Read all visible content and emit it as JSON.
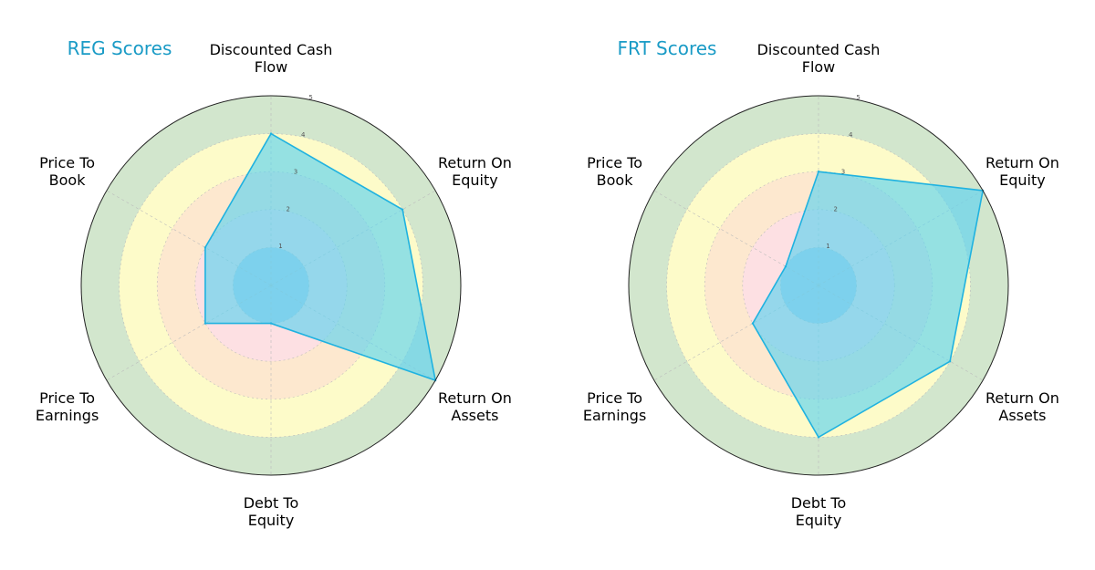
{
  "chart_data": [
    {
      "type": "radar",
      "title": "REG Scores",
      "axes": [
        "Discounted Cash Flow",
        "Return On Equity",
        "Return On Assets",
        "Debt To Equity",
        "Price To Earnings",
        "Price To Book"
      ],
      "axis_labels": [
        [
          "Discounted Cash",
          "Flow"
        ],
        [
          "Return On",
          "Equity"
        ],
        [
          "Return On",
          "Assets"
        ],
        [
          "Debt To",
          "Equity"
        ],
        [
          "Price To",
          "Earnings"
        ],
        [
          "Price To",
          "Book"
        ]
      ],
      "values": [
        4,
        4,
        5,
        1,
        2,
        2
      ],
      "rlim": [
        0,
        5
      ],
      "rticks": [
        1,
        2,
        3,
        4,
        5
      ],
      "grid": true
    },
    {
      "type": "radar",
      "title": "FRT Scores",
      "axes": [
        "Discounted Cash Flow",
        "Return On Equity",
        "Return On Assets",
        "Debt To Equity",
        "Price To Earnings",
        "Price To Book"
      ],
      "axis_labels": [
        [
          "Discounted Cash",
          "Flow"
        ],
        [
          "Return On",
          "Equity"
        ],
        [
          "Return On",
          "Assets"
        ],
        [
          "Debt To",
          "Equity"
        ],
        [
          "Price To",
          "Earnings"
        ],
        [
          "Price To",
          "Book"
        ]
      ],
      "values": [
        3,
        5,
        4,
        4,
        2,
        1
      ],
      "rlim": [
        0,
        5
      ],
      "rticks": [
        1,
        2,
        3,
        4,
        5
      ],
      "grid": true
    }
  ],
  "colors": {
    "title": "#1a9bc6",
    "series_fill": "#5ed3f0",
    "series_line": "#1fb2e0",
    "band_1": "#b8cde8",
    "band_2": "#fde0e3",
    "band_3": "#fde8cf",
    "band_4": "#fdfbc9",
    "band_5": "#d2e6cd",
    "frame": "#222222",
    "grid": "#bbbbbb"
  }
}
